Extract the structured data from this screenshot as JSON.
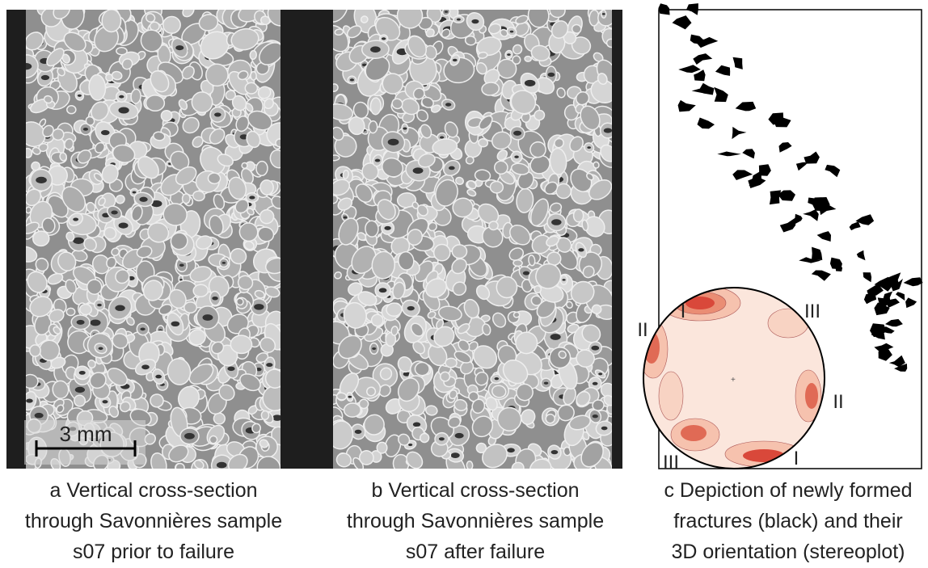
{
  "panels": [
    {
      "caption": [
        "a  Vertical cross-section",
        "through Savonnières sample",
        "s07 prior to failure"
      ],
      "scale_bar": "3 mm"
    },
    {
      "caption": [
        "b  Vertical cross-section",
        "through Savonnières sample",
        "s07 after failure"
      ]
    },
    {
      "caption": [
        "c  Depiction of newly formed",
        "fractures (black) and their",
        "3D orientation (stereoplot)"
      ],
      "stereoplot_labels": [
        "I",
        "III",
        "II",
        "II",
        "I",
        "III"
      ]
    }
  ]
}
